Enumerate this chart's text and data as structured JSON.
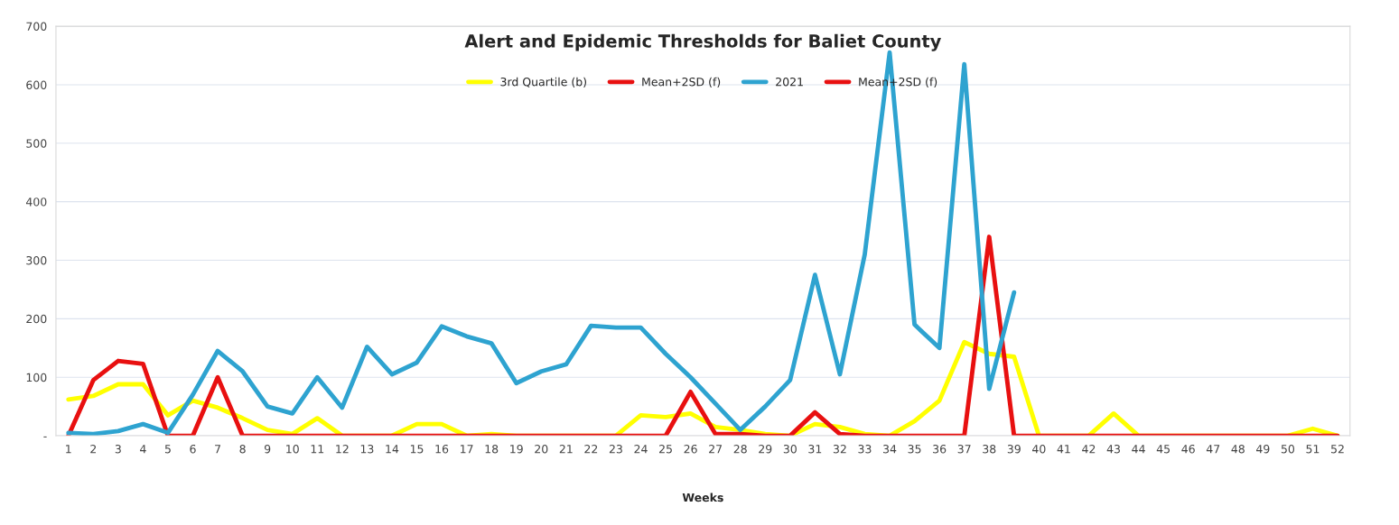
{
  "chart_data": {
    "type": "line",
    "title": "Alert and Epidemic Thresholds for Baliet County",
    "xlabel": "Weeks",
    "categories": [
      "1",
      "2",
      "3",
      "4",
      "5",
      "6",
      "7",
      "8",
      "9",
      "10",
      "11",
      "12",
      "13",
      "14",
      "15",
      "16",
      "17",
      "18",
      "19",
      "20",
      "21",
      "22",
      "23",
      "24",
      "25",
      "26",
      "27",
      "28",
      "29",
      "30",
      "31",
      "32",
      "33",
      "34",
      "35",
      "36",
      "37",
      "38",
      "39",
      "40",
      "41",
      "42",
      "43",
      "44",
      "45",
      "46",
      "47",
      "48",
      "49",
      "50",
      "51",
      "52"
    ],
    "series": [
      {
        "name": "3rd Quartile (b)",
        "color": "#ffff00",
        "values": [
          62,
          68,
          88,
          88,
          35,
          60,
          48,
          30,
          10,
          3,
          30,
          0,
          0,
          0,
          20,
          20,
          0,
          3,
          0,
          0,
          0,
          0,
          0,
          35,
          32,
          38,
          15,
          10,
          3,
          0,
          20,
          15,
          3,
          0,
          25,
          60,
          160,
          140,
          135,
          0,
          0,
          0,
          38,
          0,
          0,
          0,
          0,
          0,
          0,
          0,
          12,
          0
        ]
      },
      {
        "name": "Mean+2SD (f)",
        "color": "#e81010",
        "values": [
          0,
          95,
          128,
          123,
          0,
          0,
          100,
          0,
          0,
          0,
          0,
          0,
          0,
          0,
          0,
          0,
          0,
          0,
          0,
          0,
          0,
          0,
          0,
          0,
          0,
          75,
          3,
          3,
          0,
          0,
          40,
          3,
          0,
          0,
          0,
          0,
          0,
          340,
          0,
          0,
          0,
          0,
          0,
          0,
          0,
          0,
          0,
          0,
          0,
          0,
          0,
          0
        ]
      },
      {
        "name": "2021",
        "color": "#2ea3d0",
        "values": [
          5,
          3,
          8,
          20,
          5,
          70,
          145,
          110,
          50,
          38,
          100,
          48,
          152,
          105,
          125,
          187,
          170,
          158,
          90,
          110,
          122,
          188,
          185,
          185,
          140,
          100,
          55,
          10,
          50,
          95,
          275,
          105,
          310,
          655,
          190,
          150,
          635,
          80,
          245,
          null,
          null,
          null,
          null,
          null,
          null,
          null,
          null,
          null,
          null,
          null,
          null,
          null
        ]
      },
      {
        "name": "Mean+2SD (f)",
        "color": "#e81010",
        "values": [
          null,
          null,
          null,
          null,
          null,
          null,
          null,
          null,
          null,
          null,
          null,
          null,
          null,
          null,
          null,
          null,
          null,
          null,
          null,
          null,
          null,
          null,
          null,
          null,
          null,
          null,
          null,
          null,
          null,
          null,
          null,
          null,
          null,
          null,
          null,
          null,
          null,
          null,
          null,
          null,
          null,
          null,
          null,
          null,
          null,
          null,
          null,
          null,
          null,
          null,
          null,
          null
        ]
      }
    ],
    "ylim": [
      0,
      700
    ],
    "yticks": [
      {
        "value": 0,
        "label": "-"
      },
      100,
      200,
      300,
      400,
      500,
      600,
      700
    ],
    "grid": "y",
    "legend": "top",
    "line_style": "solid",
    "marker": "none"
  }
}
